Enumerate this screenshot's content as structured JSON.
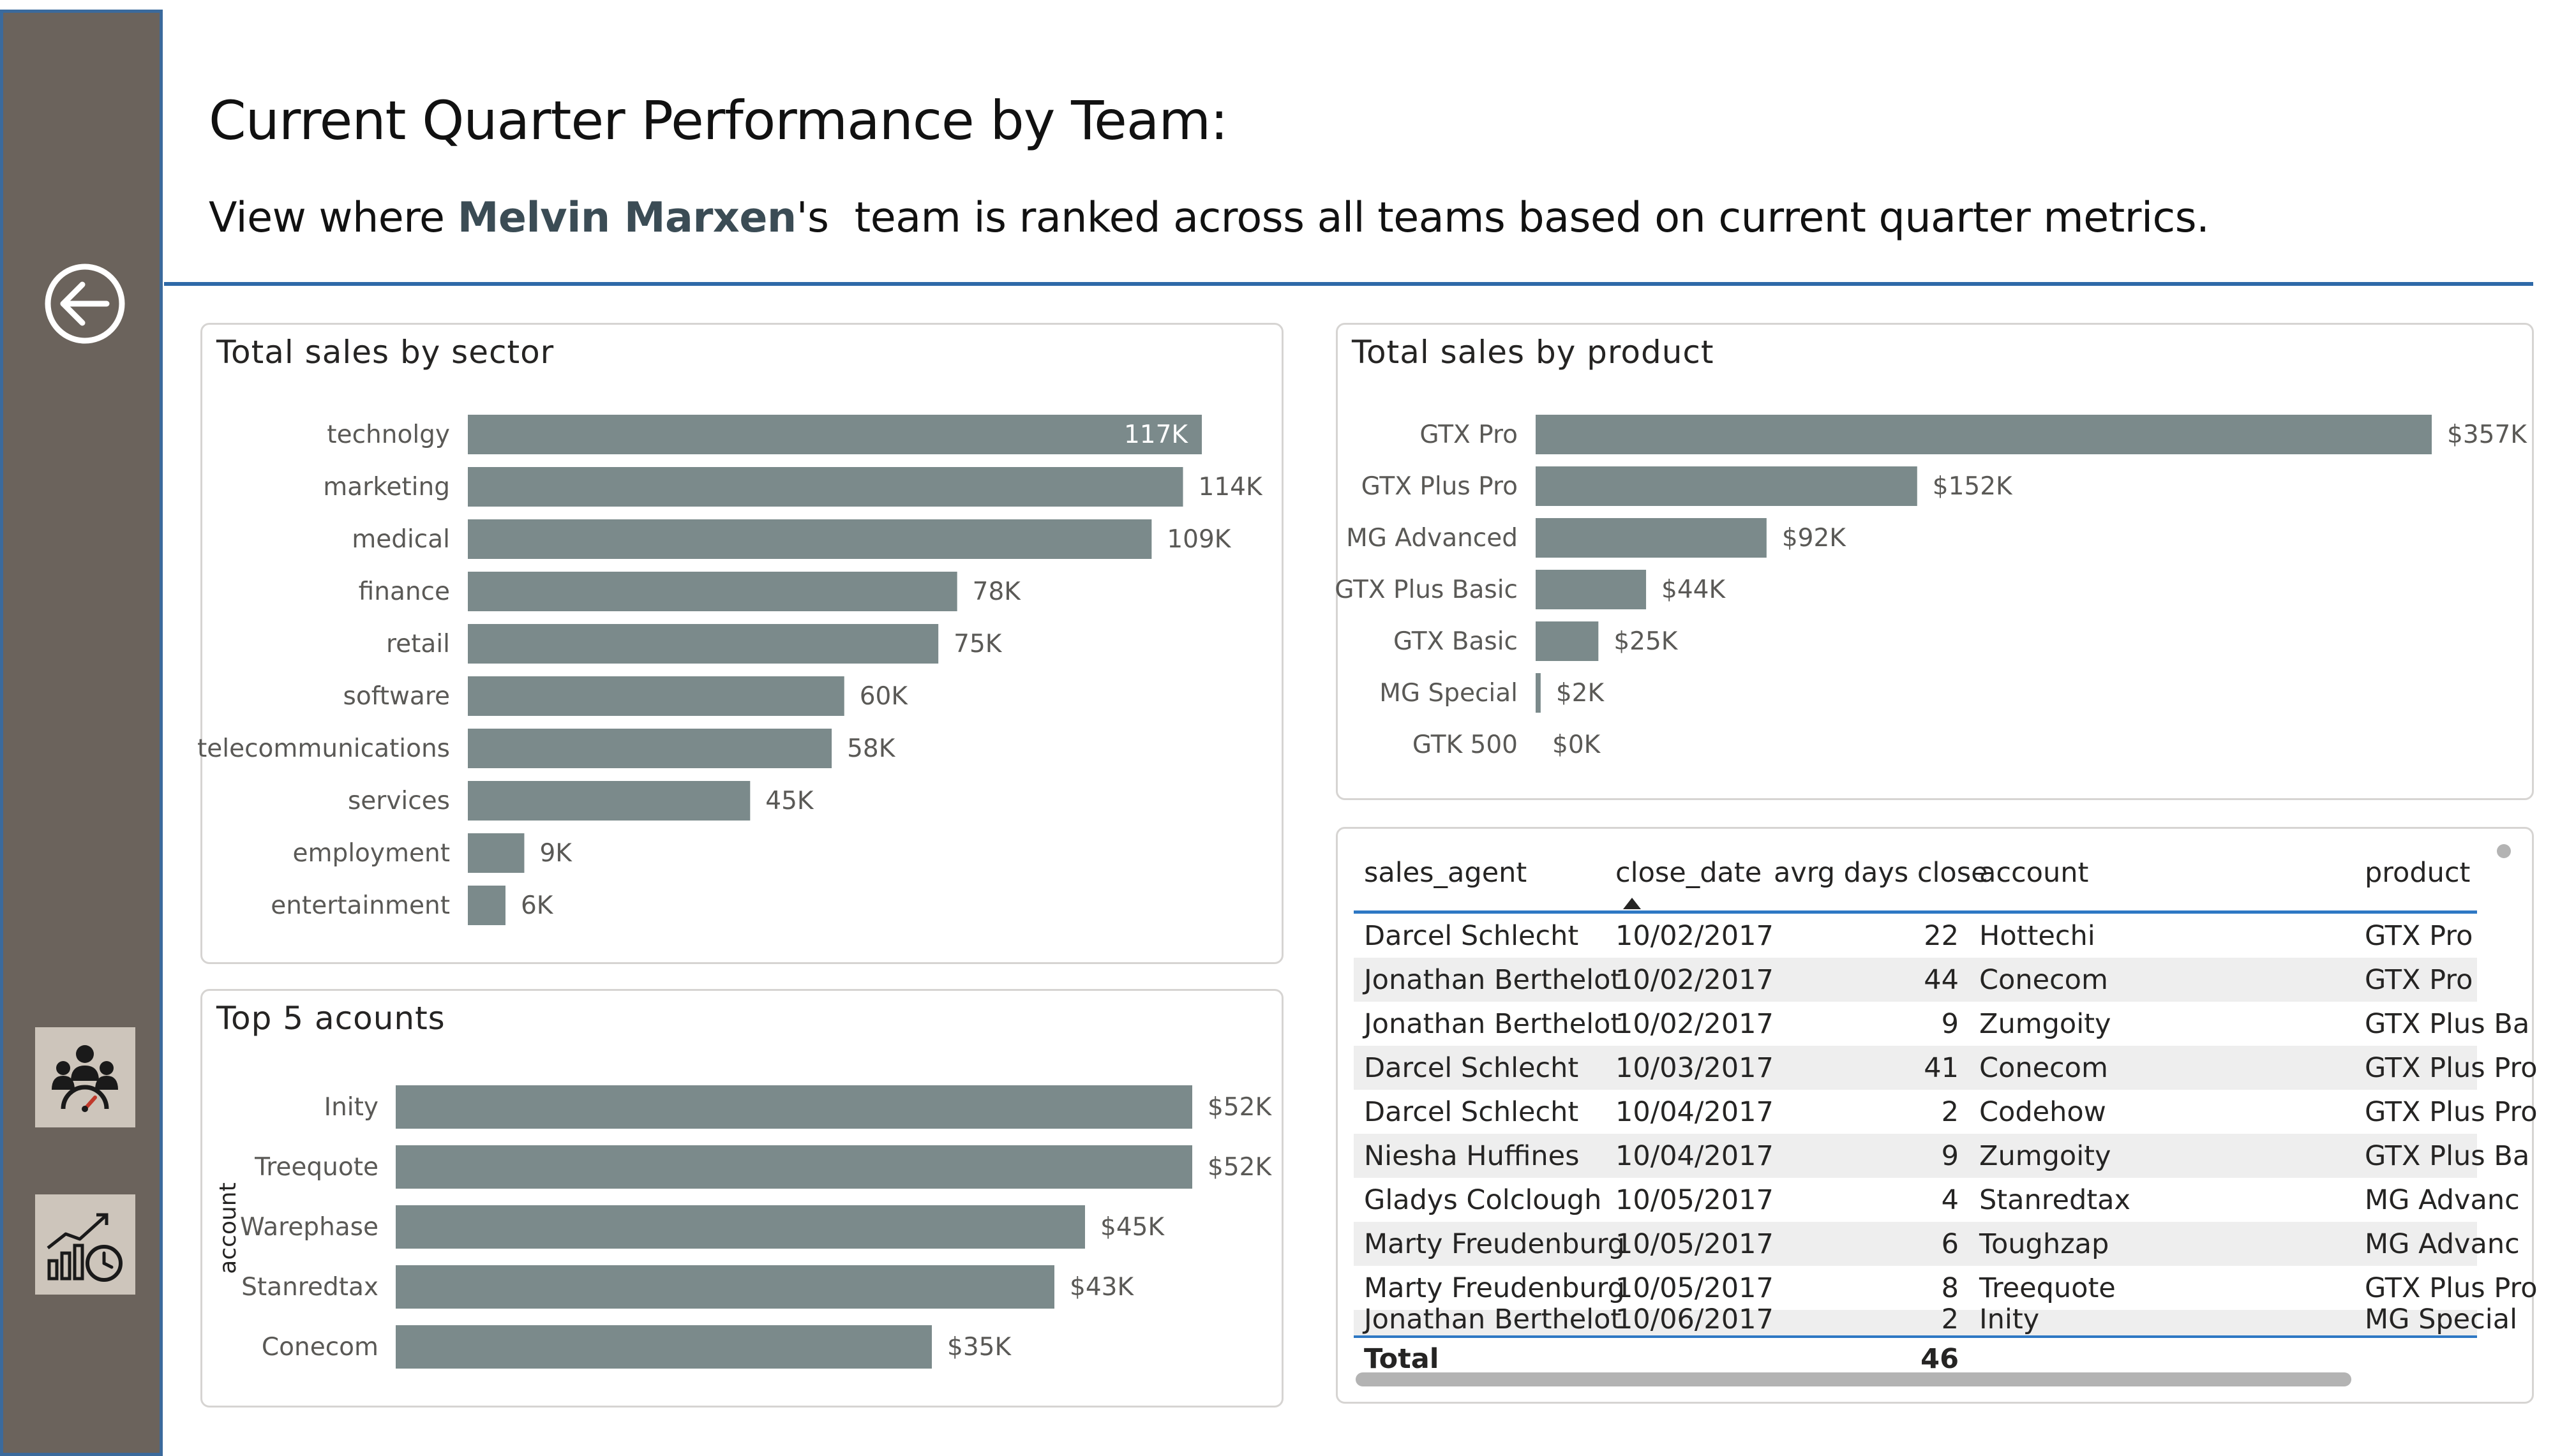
{
  "header": {
    "title": "Current Quarter Performance by Team:",
    "subtitle_prefix": "View where ",
    "agent_name": "Melvin Marxen",
    "subtitle_suffix": "'s  team is ranked across all teams based on current quarter metrics."
  },
  "sidebar": {
    "back_icon": "arrow-left-circle-icon",
    "buttons": [
      {
        "icon": "team-dashboard-icon"
      },
      {
        "icon": "performance-chart-icon"
      }
    ]
  },
  "colors": {
    "bar": "#7b8a8b",
    "sidebar": "#6b635c",
    "accent_rule": "#2e69a8"
  },
  "panels": {
    "sector_title": "Total sales by sector",
    "product_title": "Total sales by product",
    "accounts_title": "Top 5 acounts",
    "accounts_axis": "account"
  },
  "chart_data": [
    {
      "type": "bar",
      "orientation": "horizontal",
      "title": "Total sales by sector",
      "categories": [
        "technolgy",
        "marketing",
        "medical",
        "finance",
        "retail",
        "software",
        "telecommunications",
        "services",
        "employment",
        "entertainment"
      ],
      "values": [
        117,
        114,
        109,
        78,
        75,
        60,
        58,
        45,
        9,
        6
      ],
      "labels": [
        "117K",
        "114K",
        "109K",
        "78K",
        "75K",
        "60K",
        "58K",
        "45K",
        "9K",
        "6K"
      ],
      "max": 117
    },
    {
      "type": "bar",
      "orientation": "horizontal",
      "title": "Total sales by product",
      "categories": [
        "GTX Pro",
        "GTX Plus Pro",
        "MG Advanced",
        "GTX Plus Basic",
        "GTX Basic",
        "MG Special",
        "GTK 500"
      ],
      "values": [
        357,
        152,
        92,
        44,
        25,
        2,
        0
      ],
      "labels": [
        "$357K",
        "$152K",
        "$92K",
        "$44K",
        "$25K",
        "$2K",
        "$0K"
      ],
      "max": 357
    },
    {
      "type": "bar",
      "orientation": "horizontal",
      "title": "Top 5 acounts",
      "ylabel": "account",
      "categories": [
        "Inity",
        "Treequote",
        "Warephase",
        "Stanredtax",
        "Conecom"
      ],
      "values": [
        52,
        52,
        45,
        43,
        35
      ],
      "labels": [
        "$52K",
        "$52K",
        "$45K",
        "$43K",
        "$35K"
      ],
      "max": 52
    }
  ],
  "table": {
    "columns": [
      "sales_agent",
      "close_date",
      "avrg days close",
      "account",
      "product"
    ],
    "rows": [
      [
        "Darcel Schlecht",
        "10/02/2017",
        "22",
        "Hottechi",
        "GTX Pro"
      ],
      [
        "Jonathan Berthelot",
        "10/02/2017",
        "44",
        "Conecom",
        "GTX Pro"
      ],
      [
        "Jonathan Berthelot",
        "10/02/2017",
        "9",
        "Zumgoity",
        "GTX Plus Ba"
      ],
      [
        "Darcel Schlecht",
        "10/03/2017",
        "41",
        "Conecom",
        "GTX Plus Pro"
      ],
      [
        "Darcel Schlecht",
        "10/04/2017",
        "2",
        "Codehow",
        "GTX Plus Pro"
      ],
      [
        "Niesha Huffines",
        "10/04/2017",
        "9",
        "Zumgoity",
        "GTX Plus Ba"
      ],
      [
        "Gladys Colclough",
        "10/05/2017",
        "4",
        "Stanredtax",
        "MG Advanc"
      ],
      [
        "Marty Freudenburg",
        "10/05/2017",
        "6",
        "Toughzap",
        "MG Advanc"
      ],
      [
        "Marty Freudenburg",
        "10/05/2017",
        "8",
        "Treequote",
        "GTX Plus Pro"
      ],
      [
        "Jonathan Berthelot",
        "10/06/2017",
        "2",
        "Inity",
        "MG Special"
      ]
    ],
    "total_label": "Total",
    "total_value": "46"
  }
}
